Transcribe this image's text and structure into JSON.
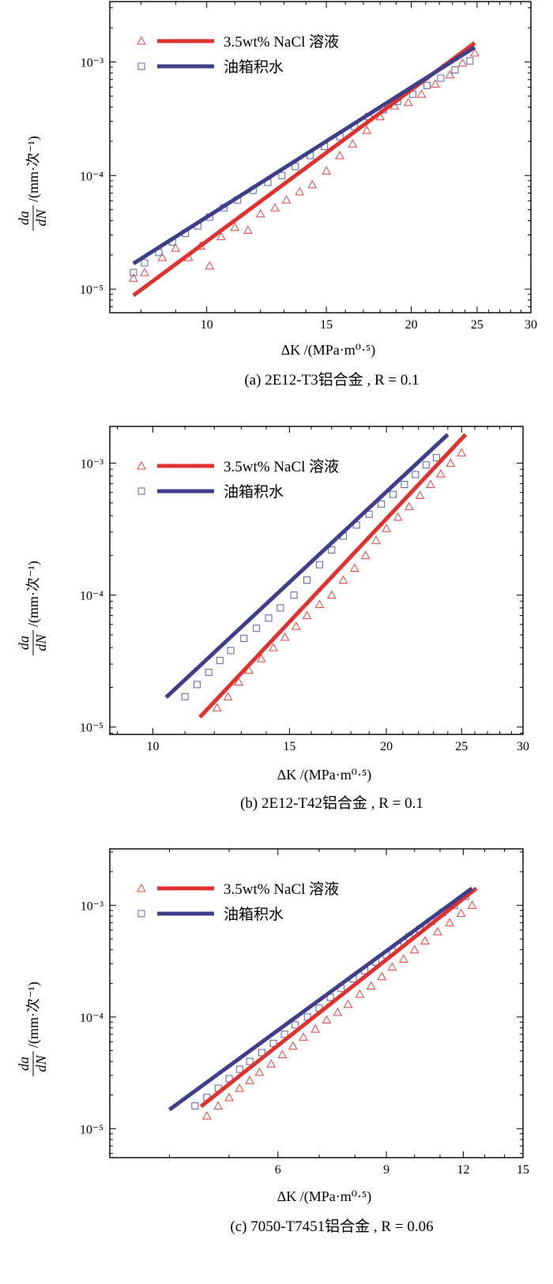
{
  "colors": {
    "nacl": "#e0312f",
    "water": "#3e3f8a",
    "nacl_marker": "#e8413e",
    "water_marker": "#5a5fae"
  },
  "y_label": {
    "numerator": "da",
    "denominator": "dN",
    "unit": "/(mm·次⁻¹)"
  },
  "chart_data": [
    {
      "type": "scatter",
      "scale": "log-log",
      "caption": "(a) 2E12-T3铝合金 , R = 0.1",
      "xlabel": "ΔK /(MPa·m⁰·⁵)",
      "xlim": [
        7.2,
        30
      ],
      "ylim": [
        6.2e-06,
        0.0034
      ],
      "xticks": [
        10,
        15,
        20,
        25,
        30
      ],
      "yticks": [
        {
          "value": 1e-05,
          "label": "10⁻⁵"
        },
        {
          "value": 0.0001,
          "label": "10⁻⁴"
        },
        {
          "value": 0.001,
          "label": "10⁻³"
        }
      ],
      "legend": [
        "3.5wt% NaCl 溶液",
        "油箱积水"
      ],
      "series": [
        {
          "name": "3.5wt% NaCl 溶液",
          "marker": "triangle",
          "x": [
            7.8,
            8.1,
            8.6,
            9.0,
            9.4,
            9.8,
            10.1,
            10.5,
            11.0,
            11.5,
            12.0,
            12.6,
            13.1,
            13.7,
            14.3,
            15.0,
            15.7,
            16.4,
            17.2,
            18.0,
            18.9,
            19.8,
            20.7,
            21.7,
            22.8,
            23.8,
            24.8
          ],
          "y": [
            1.25e-05,
            1.4e-05,
            1.9e-05,
            2.3e-05,
            1.9e-05,
            2.4e-05,
            1.6e-05,
            2.9e-05,
            3.5e-05,
            3.3e-05,
            4.6e-05,
            5.2e-05,
            6.1e-05,
            7.2e-05,
            8.3e-05,
            0.00011,
            0.00015,
            0.00019,
            0.00025,
            0.00033,
            0.00041,
            0.00044,
            0.00052,
            0.00064,
            0.00077,
            0.00098,
            0.0012
          ],
          "fit": {
            "x": [
              7.8,
              24.8
            ],
            "y": [
              8.8e-06,
              0.00147
            ]
          }
        },
        {
          "name": "油箱积水",
          "marker": "square",
          "x": [
            7.8,
            8.1,
            8.5,
            8.9,
            9.3,
            9.7,
            10.1,
            10.6,
            11.1,
            11.7,
            12.3,
            12.9,
            13.5,
            14.2,
            14.9,
            15.7,
            16.5,
            17.3,
            18.2,
            19.1,
            20.1,
            21.1,
            22.1,
            23.2,
            24.4
          ],
          "y": [
            1.4e-05,
            1.7e-05,
            2.1e-05,
            2.6e-05,
            3.1e-05,
            3.6e-05,
            4.3e-05,
            5.2e-05,
            6.1e-05,
            7.4e-05,
            8.7e-05,
            0.0001,
            0.00012,
            0.00015,
            0.00018,
            0.00022,
            0.00027,
            0.00033,
            0.00038,
            0.00045,
            0.00052,
            0.00062,
            0.00072,
            0.00085,
            0.00102
          ],
          "fit": {
            "x": [
              7.8,
              24.8
            ],
            "y": [
              1.68e-05,
              0.00135
            ]
          }
        }
      ]
    },
    {
      "type": "scatter",
      "scale": "log-log",
      "caption": "(b) 2E12-T42铝合金 , R = 0.1",
      "xlabel": "ΔK /(MPa·m⁰·⁵)",
      "xlim": [
        8.8,
        30
      ],
      "ylim": [
        8.8e-06,
        0.0019
      ],
      "xticks": [
        10,
        15,
        20,
        25,
        30
      ],
      "yticks": [
        {
          "value": 1e-05,
          "label": "10⁻⁵"
        },
        {
          "value": 0.0001,
          "label": "10⁻⁴"
        },
        {
          "value": 0.001,
          "label": "10⁻³"
        }
      ],
      "legend": [
        "3.5wt% NaCl 溶液",
        "油箱积水"
      ],
      "series": [
        {
          "name": "3.5wt% NaCl 溶液",
          "marker": "triangle",
          "x": [
            12.1,
            12.5,
            12.9,
            13.3,
            13.8,
            14.3,
            14.8,
            15.3,
            15.8,
            16.4,
            17.0,
            17.6,
            18.2,
            18.8,
            19.4,
            20.0,
            20.7,
            21.4,
            22.1,
            22.8,
            23.5,
            24.2,
            25.0
          ],
          "y": [
            1.4e-05,
            1.7e-05,
            2.2e-05,
            2.7e-05,
            3.3e-05,
            4e-05,
            4.8e-05,
            5.8e-05,
            7e-05,
            8.5e-05,
            0.0001,
            0.00013,
            0.00016,
            0.0002,
            0.00026,
            0.00032,
            0.00039,
            0.00047,
            0.00057,
            0.00069,
            0.00083,
            0.001,
            0.0012
          ],
          "fit": {
            "x": [
              11.5,
              25.3
            ],
            "y": [
              1.19e-05,
              0.00165
            ]
          }
        },
        {
          "name": "油箱积水",
          "marker": "square",
          "x": [
            11.0,
            11.4,
            11.8,
            12.2,
            12.6,
            13.1,
            13.6,
            14.1,
            14.6,
            15.2,
            15.8,
            16.4,
            17.0,
            17.6,
            18.3,
            19.0,
            19.7,
            20.4,
            21.1,
            21.8,
            22.5,
            23.2
          ],
          "y": [
            1.7e-05,
            2.1e-05,
            2.6e-05,
            3.2e-05,
            3.8e-05,
            4.7e-05,
            5.6e-05,
            6.7e-05,
            8e-05,
            0.0001,
            0.00013,
            0.00017,
            0.00022,
            0.00028,
            0.00034,
            0.00041,
            0.00049,
            0.00058,
            0.00069,
            0.00082,
            0.00097,
            0.0011
          ],
          "fit": {
            "x": [
              10.4,
              24.0
            ],
            "y": [
              1.68e-05,
              0.00165
            ]
          }
        }
      ]
    },
    {
      "type": "scatter",
      "scale": "log-log",
      "caption": "(c) 7050-T7451铝合金 , R = 0.06",
      "xlabel": "ΔK /(MPa·m⁰·⁵)",
      "xlim": [
        3.2,
        15
      ],
      "ylim": [
        5.5e-06,
        0.0032
      ],
      "xticks": [
        6,
        9,
        12,
        15
      ],
      "yticks": [
        {
          "value": 1e-05,
          "label": "10⁻⁵"
        },
        {
          "value": 0.0001,
          "label": "10⁻⁴"
        },
        {
          "value": 0.001,
          "label": "10⁻³"
        }
      ],
      "legend": [
        "3.5wt% NaCl 溶液",
        "油箱积水"
      ],
      "series": [
        {
          "name": "3.5wt% NaCl 溶液",
          "marker": "triangle",
          "x": [
            4.6,
            4.8,
            5.0,
            5.2,
            5.4,
            5.6,
            5.85,
            6.1,
            6.35,
            6.6,
            6.9,
            7.2,
            7.5,
            7.8,
            8.15,
            8.5,
            8.85,
            9.2,
            9.6,
            10.0,
            10.4,
            10.9,
            11.4,
            11.9,
            12.4
          ],
          "y": [
            1.3e-05,
            1.6e-05,
            1.9e-05,
            2.3e-05,
            2.7e-05,
            3.2e-05,
            3.8e-05,
            4.6e-05,
            5.5e-05,
            6.6e-05,
            7.8e-05,
            9.4e-05,
            0.00011,
            0.00013,
            0.00016,
            0.00019,
            0.00023,
            0.00028,
            0.00033,
            0.0004,
            0.00048,
            0.00058,
            0.0007,
            0.00085,
            0.001
          ],
          "fit": {
            "x": [
              4.5,
              12.6
            ],
            "y": [
              1.58e-05,
              0.00142
            ]
          }
        },
        {
          "name": "油箱积水",
          "marker": "square",
          "x": [
            4.4,
            4.6,
            4.8,
            5.0,
            5.2,
            5.4,
            5.65,
            5.9,
            6.15,
            6.4,
            6.7,
            7.0,
            7.3,
            7.6,
            7.95,
            8.3,
            8.65,
            9.0,
            9.4,
            9.8,
            10.2,
            10.65,
            11.1,
            11.6,
            12.1
          ],
          "y": [
            1.6e-05,
            1.9e-05,
            2.3e-05,
            2.8e-05,
            3.4e-05,
            4e-05,
            4.8e-05,
            5.8e-05,
            7e-05,
            8.5e-05,
            0.0001,
            0.00012,
            0.00015,
            0.00018,
            0.00022,
            0.00026,
            0.00031,
            0.00036,
            0.00043,
            0.00052,
            0.00061,
            0.00072,
            0.00086,
            0.001,
            0.0012
          ],
          "fit": {
            "x": [
              4.0,
              12.4
            ],
            "y": [
              1.48e-05,
              0.00142
            ]
          }
        }
      ]
    }
  ]
}
